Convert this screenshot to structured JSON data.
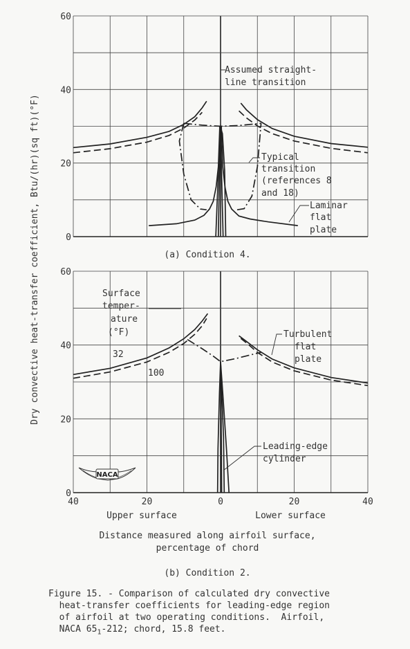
{
  "chart_data": [
    {
      "type": "line",
      "subtitle": "(a) Condition 4.",
      "xlim": [
        -40,
        40
      ],
      "ylim": [
        0,
        60
      ],
      "y_ticks": [
        "0",
        "20",
        "40",
        "60"
      ],
      "grid": true,
      "annotations": [
        "Assumed straight-",
        "line transition",
        "Typical",
        "transition",
        "(references 8",
        "and 18)",
        "Laminar",
        "flat",
        "plate"
      ],
      "series": [
        {
          "style": "solid",
          "points": [
            [
              -40,
              24.2
            ],
            [
              -30,
              25.2
            ],
            [
              -20,
              27
            ],
            [
              -14,
              28.6
            ],
            [
              -10,
              30.5
            ],
            [
              -7,
              32.6
            ],
            [
              -5,
              35
            ],
            [
              -3.8,
              36.8
            ]
          ]
        },
        {
          "style": "solid",
          "points": [
            [
              5.5,
              36.3
            ],
            [
              7,
              34.5
            ],
            [
              10,
              31.8
            ],
            [
              14,
              29.4
            ],
            [
              20,
              27.3
            ],
            [
              30,
              25.3
            ],
            [
              40,
              24.3
            ]
          ]
        },
        {
          "style": "dashed",
          "points": [
            [
              -40,
              22.8
            ],
            [
              -30,
              23.9
            ],
            [
              -20,
              25.7
            ],
            [
              -14,
              27.5
            ],
            [
              -10,
              29.5
            ],
            [
              -7,
              31.7
            ],
            [
              -5,
              33.8
            ]
          ]
        },
        {
          "style": "dashed",
          "points": [
            [
              5,
              34.2
            ],
            [
              7,
              32.3
            ],
            [
              10,
              30.1
            ],
            [
              14,
              28
            ],
            [
              20,
              26
            ],
            [
              30,
              24
            ],
            [
              40,
              22.8
            ]
          ]
        },
        {
          "style": "solid",
          "points": [
            [
              -19.5,
              3
            ],
            [
              -12,
              3.5
            ],
            [
              -7,
              4.5
            ],
            [
              -4.5,
              5.8
            ],
            [
              -3,
              7.5
            ],
            [
              -2,
              9.6
            ],
            [
              -1.2,
              13.5
            ],
            [
              -0.6,
              19
            ],
            [
              -0.2,
              30
            ]
          ]
        },
        {
          "style": "solid",
          "points": [
            [
              0.2,
              30
            ],
            [
              0.6,
              19
            ],
            [
              1.2,
              13.5
            ],
            [
              2,
              9.6
            ],
            [
              3,
              7.5
            ],
            [
              5,
              5.6
            ],
            [
              8,
              4.8
            ],
            [
              13,
              4
            ],
            [
              21,
              3
            ]
          ]
        },
        {
          "style": "solid",
          "points": [
            [
              -1.3,
              0
            ],
            [
              -0.9,
              10
            ],
            [
              -0.4,
              22
            ],
            [
              0,
              29.7
            ],
            [
              0.5,
              28
            ],
            [
              1.1,
              18
            ],
            [
              1.4,
              0
            ]
          ]
        },
        {
          "style": "solid",
          "points": [
            [
              -0.6,
              0
            ],
            [
              -0.4,
              12
            ],
            [
              0,
              29.8
            ],
            [
              0.4,
              12
            ],
            [
              0.7,
              0
            ]
          ]
        },
        {
          "style": "dashdot",
          "points": [
            [
              -10,
              30.8
            ],
            [
              -5,
              30.3
            ],
            [
              0,
              30
            ],
            [
              5,
              30.2
            ],
            [
              11,
              30.8
            ]
          ]
        },
        {
          "style": "dashdot",
          "points": [
            [
              -10,
              30.8
            ],
            [
              -11.2,
              26
            ],
            [
              -10,
              17
            ],
            [
              -8,
              10
            ],
            [
              -5.5,
              7.5
            ],
            [
              -3.8,
              7.3
            ]
          ]
        },
        {
          "style": "dashdot",
          "points": [
            [
              4.5,
              7.3
            ],
            [
              6.4,
              7.6
            ],
            [
              8.5,
              11
            ],
            [
              10,
              19
            ],
            [
              10.6,
              26
            ],
            [
              11,
              30.8
            ]
          ]
        }
      ]
    },
    {
      "type": "line",
      "subtitle": "(b) Condition 2.",
      "xlim": [
        -40,
        40
      ],
      "ylim": [
        0,
        60
      ],
      "x_ticks": [
        "40",
        "20",
        "0",
        "20",
        "40"
      ],
      "y_ticks": [
        "0",
        "20",
        "40",
        "60"
      ],
      "x_labels_sides": [
        "Upper surface",
        "Lower surface"
      ],
      "xlabel": [
        "Distance measured along airfoil surface,",
        "percentage of chord"
      ],
      "grid": true,
      "annotations": [
        "Surface",
        "temper-",
        "ature",
        "(°F)",
        "32",
        "100",
        "Turbulent",
        "flat",
        "plate",
        "Leading-edge",
        "cylinder"
      ],
      "logo": "NACA",
      "series": [
        {
          "style": "solid",
          "name": "32",
          "points": [
            [
              -40,
              32
            ],
            [
              -30,
              33.7
            ],
            [
              -20,
              36.5
            ],
            [
              -14,
              39.2
            ],
            [
              -10,
              41.7
            ],
            [
              -7,
              44.2
            ],
            [
              -5,
              46.5
            ],
            [
              -3.5,
              48.5
            ]
          ]
        },
        {
          "style": "solid",
          "name": "32",
          "points": [
            [
              5,
              42.5
            ],
            [
              7,
              41
            ],
            [
              10,
              38.7
            ],
            [
              14,
              36.2
            ],
            [
              20,
              33.8
            ],
            [
              30,
              31.2
            ],
            [
              40,
              29.7
            ]
          ]
        },
        {
          "style": "dashed",
          "name": "100",
          "points": [
            [
              -40,
              31
            ],
            [
              -30,
              32.7
            ],
            [
              -20,
              35.4
            ],
            [
              -14,
              38
            ],
            [
              -10,
              40.4
            ],
            [
              -7,
              42.9
            ],
            [
              -5,
              45.2
            ],
            [
              -3.8,
              47.2
            ]
          ]
        },
        {
          "style": "dashed",
          "name": "100",
          "points": [
            [
              5.5,
              41.8
            ],
            [
              7.5,
              40.2
            ],
            [
              10,
              38
            ],
            [
              14,
              35.4
            ],
            [
              20,
              33
            ],
            [
              30,
              30.5
            ],
            [
              40,
              29
            ]
          ]
        },
        {
          "style": "solid",
          "points": [
            [
              -0.8,
              0
            ],
            [
              -0.7,
              12
            ],
            [
              -0.3,
              27
            ],
            [
              0,
              35.5
            ],
            [
              0.6,
              27
            ],
            [
              1.6,
              12
            ],
            [
              2.3,
              0
            ]
          ]
        },
        {
          "style": "solid",
          "points": [
            [
              0.3,
              0
            ],
            [
              0.2,
              15
            ],
            [
              0,
              35.5
            ],
            [
              0.8,
              15
            ],
            [
              1,
              0
            ]
          ]
        },
        {
          "style": "dashdot",
          "points": [
            [
              -9,
              41.5
            ],
            [
              -5,
              39
            ],
            [
              -2,
              37
            ],
            [
              0,
              35.5
            ],
            [
              4,
              36.3
            ],
            [
              8,
              37.3
            ],
            [
              11,
              38
            ]
          ]
        }
      ]
    }
  ],
  "caption": [
    "Figure 15. - Comparison of calculated dry convective",
    "  heat-transfer coefficients for leading-edge region",
    "  of airfoil at two operating conditions.  Airfoil,",
    "  NACA 65",
    "-212; chord, 15.8 feet."
  ],
  "caption_subscript": "1",
  "ylabel": "Dry convective heat-transfer coefficient, Btu/(hr)(sq ft)(°F)"
}
